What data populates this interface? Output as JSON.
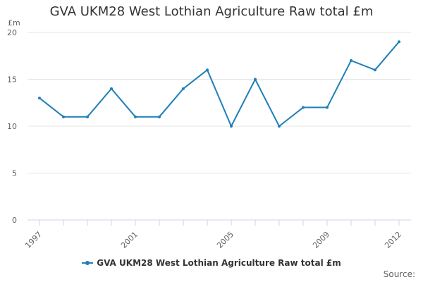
{
  "chart_data": {
    "type": "line",
    "title": "GVA UKM28 West Lothian Agriculture Raw total £m",
    "ylabel": "£m",
    "xlabel": "",
    "ylim": [
      0,
      20
    ],
    "yticks": [
      0,
      5,
      10,
      15,
      20
    ],
    "x": [
      1997,
      1998,
      1999,
      2000,
      2001,
      2002,
      2003,
      2004,
      2005,
      2006,
      2007,
      2008,
      2009,
      2010,
      2011,
      2012
    ],
    "xtick_labels": [
      "1997",
      "2001",
      "2005",
      "2009",
      "2012"
    ],
    "grid": true,
    "legend_position": "bottom",
    "series": [
      {
        "name": "GVA UKM28 West Lothian Agriculture Raw total £m",
        "color": "#1f7fb8",
        "values": [
          13,
          11,
          11,
          14,
          11,
          11,
          14,
          16,
          10,
          15,
          10,
          12,
          12,
          17,
          16,
          19
        ]
      }
    ]
  },
  "footer": {
    "source_label": "Source:"
  }
}
